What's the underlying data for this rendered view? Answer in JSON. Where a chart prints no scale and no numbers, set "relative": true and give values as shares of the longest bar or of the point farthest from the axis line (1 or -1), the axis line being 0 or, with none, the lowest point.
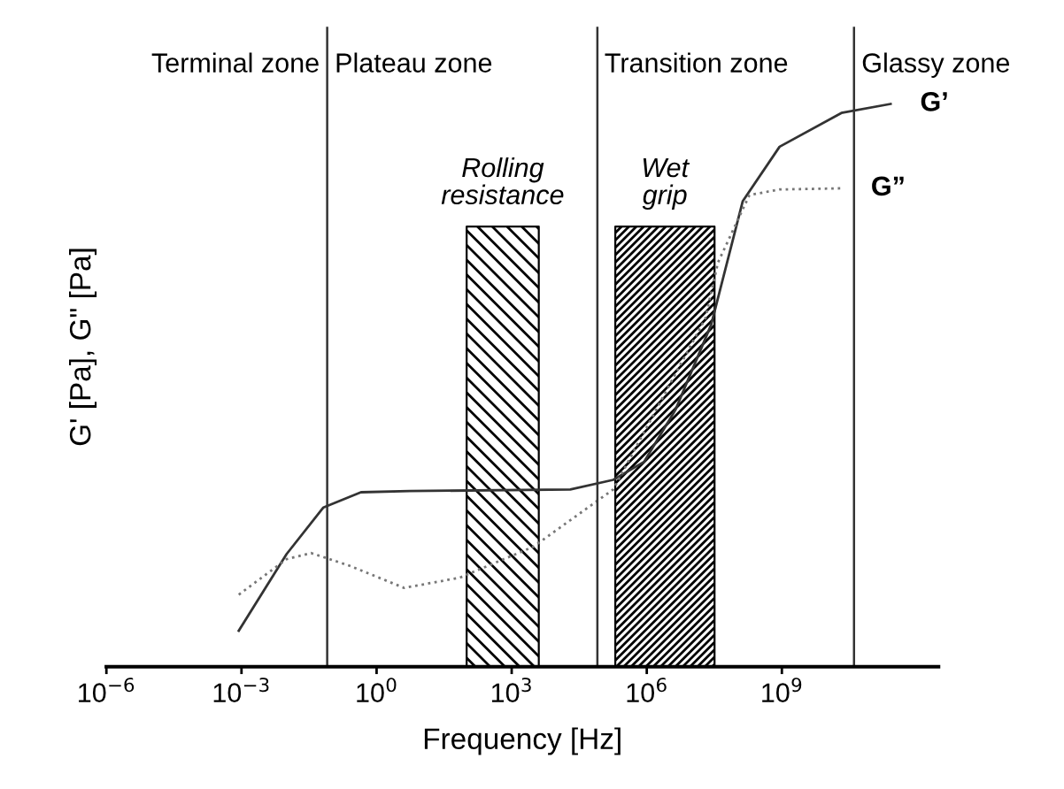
{
  "chart_data": {
    "type": "line",
    "xlabel": "Frequency [Hz]",
    "ylabel": "G' [Pa], G\" [Pa]",
    "relative": true,
    "log": "x",
    "xlim": [
      1e-06,
      3000000000000.0
    ],
    "xticks": [
      {
        "value": 1e-06,
        "label": "10$^{−6}$"
      },
      {
        "value": 0.001,
        "label": "10$^{−3}$"
      },
      {
        "value": 1,
        "label": "10$^{0}$"
      },
      {
        "value": 1000.0,
        "label": "10$^{3}$"
      },
      {
        "value": 1000000.0,
        "label": "10$^{6}$"
      },
      {
        "value": 1000000000.0,
        "label": "10$^{9}$"
      }
    ],
    "grid": false,
    "marker": "none",
    "series": [
      {
        "name": "G’",
        "color": "#333333",
        "line_style": "solid",
        "x": [
          0.00087,
          0.01,
          0.066,
          0.45,
          5.4,
          20000,
          180000,
          870000,
          4300000,
          27000000,
          135000000,
          890000000,
          21000000000,
          260000000000
        ],
        "values": [
          0.064,
          0.2,
          0.283,
          0.31,
          0.312,
          0.315,
          0.332,
          0.364,
          0.456,
          0.608,
          0.827,
          0.924,
          0.984,
          1.0
        ]
      },
      {
        "name": "G”",
        "color": "#777777",
        "line_style": "dotted",
        "x": [
          0.00087,
          0.01,
          0.035,
          0.24,
          4.1,
          69,
          3000,
          180000,
          1600000,
          20000000,
          38000000,
          190000000,
          890000000,
          21000000000
        ],
        "values": [
          0.128,
          0.191,
          0.202,
          0.18,
          0.14,
          0.158,
          0.213,
          0.315,
          0.456,
          0.619,
          0.718,
          0.838,
          0.848,
          0.85
        ]
      }
    ],
    "ref_lines": [
      {
        "axis": "x",
        "value": 0.08,
        "color": "#333333"
      },
      {
        "axis": "x",
        "value": 80000,
        "color": "#333333"
      },
      {
        "axis": "x",
        "value": 40000000000,
        "color": "#333333"
      }
    ],
    "bands": [
      {
        "axis": "x",
        "from": 100,
        "to": 4000,
        "label": "Rolling resistance",
        "color": "#000000"
      },
      {
        "axis": "x",
        "from": 200000,
        "to": 32000000,
        "label": "Wet grip",
        "color": "#000000"
      }
    ],
    "annotations": [
      "Terminal zone",
      "Plateau zone",
      "Transition zone",
      "Glassy zone"
    ]
  }
}
